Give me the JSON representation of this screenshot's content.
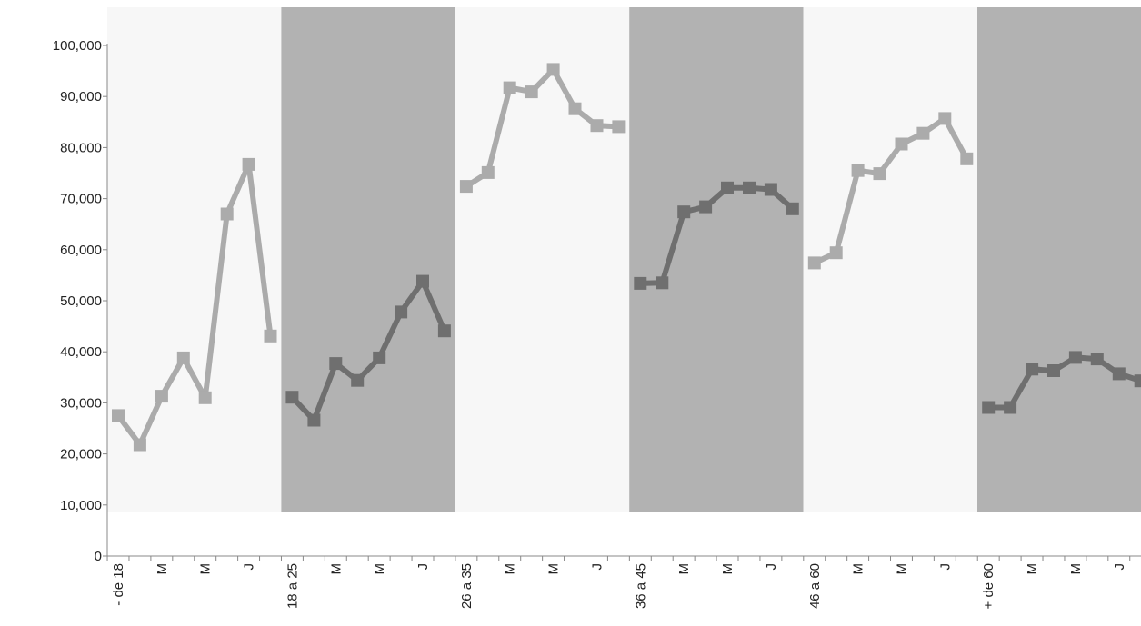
{
  "chart_data": {
    "type": "line",
    "ylim": [
      0,
      100000
    ],
    "y_ticks": [
      "0",
      "10,000",
      "20,000",
      "30,000",
      "40,000",
      "50,000",
      "60,000",
      "70,000",
      "80,000",
      "90,000",
      "100,000"
    ],
    "grid": false,
    "x_tick_labels": [
      "- de 18",
      "",
      "M",
      "",
      "M",
      "",
      "J",
      "",
      "18 a 25",
      "",
      "M",
      "",
      "M",
      "",
      "J",
      "",
      "26 a 35",
      "",
      "M",
      "",
      "M",
      "",
      "J",
      "",
      "36 a 45",
      "",
      "M",
      "",
      "M",
      "",
      "J",
      "",
      "46 a 60",
      "",
      "M",
      "",
      "M",
      "",
      "J",
      "",
      "+ de 60",
      "",
      "M",
      "",
      "M",
      "",
      "J",
      ""
    ],
    "groups": [
      {
        "label": "- de 18",
        "values": [
          27500,
          21800,
          31300,
          38800,
          31000,
          67000,
          76700,
          43100
        ]
      },
      {
        "label": "18 a 25",
        "values": [
          31100,
          26600,
          37700,
          34400,
          38800,
          47800,
          53800,
          44100
        ]
      },
      {
        "label": "26 a 35",
        "values": [
          72400,
          75100,
          91700,
          90900,
          95300,
          87600,
          84300,
          84100
        ]
      },
      {
        "label": "36 a 45",
        "values": [
          53400,
          53500,
          67400,
          68400,
          72100,
          72100,
          71800,
          68000
        ]
      },
      {
        "label": "46 a 60",
        "values": [
          57400,
          59400,
          75500,
          74900,
          80700,
          82800,
          85700,
          77800
        ]
      },
      {
        "label": "+ de 60",
        "values": [
          29100,
          29100,
          36600,
          36300,
          38900,
          38600,
          35700,
          34300
        ]
      }
    ],
    "colors": {
      "light_band": "#f7f7f7",
      "dark_band": "#b2b2b2",
      "light_line": "#ababab",
      "dark_line": "#6f6f6f",
      "axis": "#888888"
    }
  }
}
